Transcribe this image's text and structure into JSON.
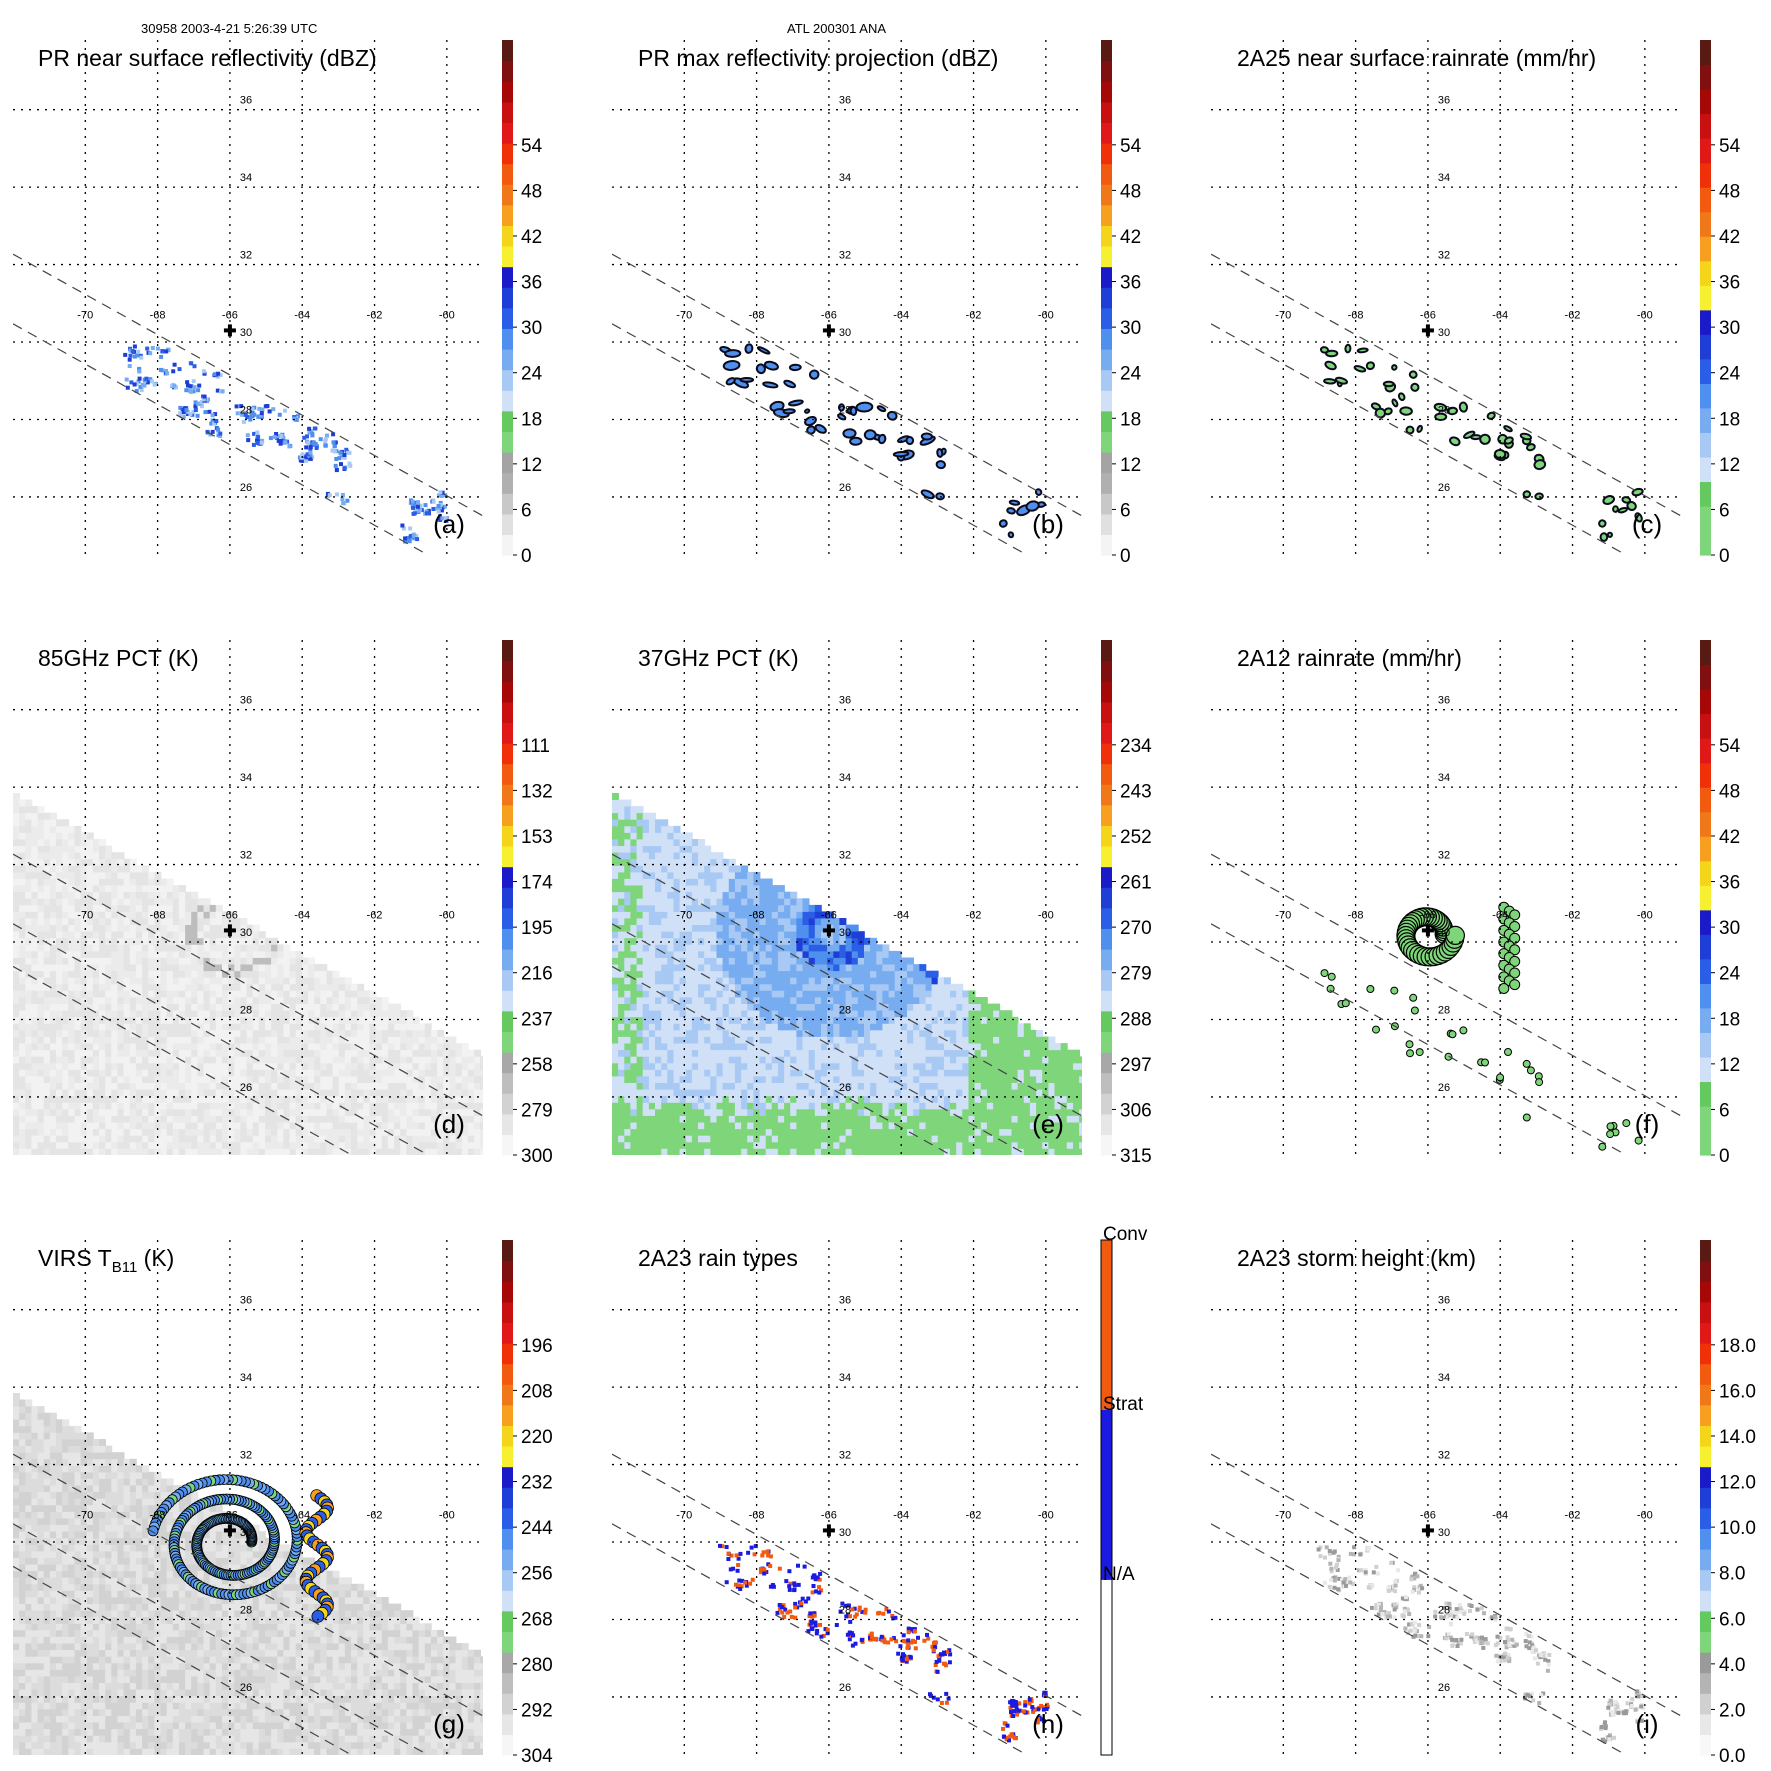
{
  "header": {
    "left": "30958 2003-4-21 5:26:39 UTC",
    "center": "ATL 200301 ANA"
  },
  "colors": {
    "dbz": [
      "#f4f4f4",
      "#e0e0e0",
      "#c8c8c8",
      "#b0b0b0",
      "#a4a4a4",
      "#7fd67a",
      "#64c95e",
      "#cfe0f7",
      "#a8c9f4",
      "#78acf0",
      "#4f90ee",
      "#2a5ee6",
      "#1f3ed6",
      "#1a1ac8",
      "#f7f030",
      "#f4d51a",
      "#f7a020",
      "#f07818",
      "#f25a10",
      "#f03008",
      "#e01818",
      "#c81010",
      "#a60808",
      "#801010",
      "#5a1a14"
    ],
    "tb": [
      "#f6f6f6",
      "#e6e6e6",
      "#d2d2d2",
      "#bebebe",
      "#a8a8a8",
      "#7fd67a",
      "#64c95e",
      "#cfe0f7",
      "#a8c9f4",
      "#78acf0",
      "#4f90ee",
      "#2a5ee6",
      "#1f3ed6",
      "#1a1ac8",
      "#f7f030",
      "#f4d51a",
      "#f7a020",
      "#f07818",
      "#f25a10",
      "#f03008",
      "#e01818",
      "#c81010",
      "#a60808",
      "#801010",
      "#5a1a14"
    ],
    "rain": [
      "#7fd67a",
      "#7fd67a",
      "#64c95e",
      "#cfe0f7",
      "#a8c9f4",
      "#78acf0",
      "#4f90ee",
      "#2a5ee6",
      "#1f3ed6",
      "#1a1ac8",
      "#f7f030",
      "#f4d51a",
      "#f7a020",
      "#f07818",
      "#f25a10",
      "#f03008",
      "#e01818",
      "#c81010",
      "#a60808",
      "#801010",
      "#5a1a14"
    ],
    "height": [
      "#f8f8f8",
      "#e8e8e8",
      "#d0d0d0",
      "#b4b4b4",
      "#9a9a9a",
      "#7fd67a",
      "#64c95e",
      "#cfe0f7",
      "#a8c9f4",
      "#78acf0",
      "#4f90ee",
      "#2a5ee6",
      "#1f3ed6",
      "#1a1ac8",
      "#f7f030",
      "#f4d51a",
      "#f7a020",
      "#f07818",
      "#f25a10",
      "#f03008",
      "#e01818",
      "#c81010",
      "#a60808",
      "#801010",
      "#5a1a14"
    ],
    "raintype": [
      "#ffffff",
      "#1a1ae0",
      "#f25a10"
    ]
  },
  "chart_data": [
    {
      "id": "a",
      "type": "heatmap",
      "title": "PR near surface reflectivity (dBZ)",
      "panel_label": "(a)",
      "colorbar": {
        "ticks": [
          0,
          6,
          12,
          18,
          24,
          30,
          36,
          42,
          48,
          54
        ],
        "range": [
          0,
          60
        ],
        "palette": "dbz"
      },
      "lon_ticks": [
        -70,
        -68,
        -66,
        -64,
        -62,
        -60
      ],
      "lat_ticks": [
        26,
        28,
        30,
        32,
        34,
        36
      ],
      "lon_range": [
        -72,
        -59
      ],
      "lat_range": [
        24.5,
        37.8
      ],
      "swath": "pr",
      "field": "pr_sparse"
    },
    {
      "id": "b",
      "type": "heatmap",
      "title": "PR max reflectivity projection (dBZ)",
      "panel_label": "(b)",
      "colorbar": {
        "ticks": [
          0,
          6,
          12,
          18,
          24,
          30,
          36,
          42,
          48,
          54
        ],
        "range": [
          0,
          60
        ],
        "palette": "dbz"
      },
      "lon_ticks": [
        -70,
        -68,
        -66,
        -64,
        -62,
        -60
      ],
      "lat_ticks": [
        26,
        28,
        30,
        32,
        34,
        36
      ],
      "lon_range": [
        -72,
        -59
      ],
      "lat_range": [
        24.5,
        37.8
      ],
      "swath": "pr",
      "field": "pr_contour"
    },
    {
      "id": "c",
      "type": "heatmap",
      "title": "2A25 near surface rainrate (mm/hr)",
      "panel_label": "(c)",
      "colorbar": {
        "ticks": [
          0,
          6,
          12,
          18,
          24,
          30,
          36,
          42,
          48,
          54
        ],
        "range": [
          0,
          60
        ],
        "palette": "rain"
      },
      "lon_ticks": [
        -70,
        -68,
        -66,
        -64,
        -62,
        -60
      ],
      "lat_ticks": [
        26,
        28,
        30,
        32,
        34,
        36
      ],
      "lon_range": [
        -72,
        -59
      ],
      "lat_range": [
        24.5,
        37.8
      ],
      "swath": "pr",
      "field": "pr_contour_small"
    },
    {
      "id": "d",
      "type": "heatmap",
      "title": "85GHz PCT (K)",
      "panel_label": "(d)",
      "colorbar": {
        "ticks": [
          300,
          279,
          258,
          237,
          216,
          195,
          174,
          153,
          132,
          111
        ],
        "range": [
          300,
          90
        ],
        "palette": "tb"
      },
      "lon_ticks": [
        -70,
        -68,
        -66,
        -64,
        -62,
        -60
      ],
      "lat_ticks": [
        26,
        28,
        30,
        32,
        34,
        36
      ],
      "lon_range": [
        -72,
        -59
      ],
      "lat_range": [
        24.5,
        37.8
      ],
      "swath": "tmi",
      "field": "pct85"
    },
    {
      "id": "e",
      "type": "heatmap",
      "title": "37GHz PCT (K)",
      "panel_label": "(e)",
      "colorbar": {
        "ticks": [
          315,
          306,
          297,
          288,
          279,
          270,
          261,
          252,
          243,
          234
        ],
        "range": [
          315,
          225
        ],
        "palette": "tb"
      },
      "lon_ticks": [
        -70,
        -68,
        -66,
        -64,
        -62,
        -60
      ],
      "lat_ticks": [
        26,
        28,
        30,
        32,
        34,
        36
      ],
      "lon_range": [
        -72,
        -59
      ],
      "lat_range": [
        24.5,
        37.8
      ],
      "swath": "tmi",
      "field": "pct37"
    },
    {
      "id": "f",
      "type": "heatmap",
      "title": "2A12 rainrate (mm/hr)",
      "panel_label": "(f)",
      "colorbar": {
        "ticks": [
          0,
          6,
          12,
          18,
          24,
          30,
          36,
          42,
          48,
          54
        ],
        "range": [
          0,
          60
        ],
        "palette": "rain"
      },
      "lon_ticks": [
        -70,
        -68,
        -66,
        -64,
        -62,
        -60
      ],
      "lat_ticks": [
        26,
        28,
        30,
        32,
        34,
        36
      ],
      "lon_range": [
        -72,
        -59
      ],
      "lat_range": [
        24.5,
        37.8
      ],
      "swath": "pr",
      "field": "tmi_rain"
    },
    {
      "id": "g",
      "type": "heatmap",
      "title": "VIRS T",
      "title_sub": "B11",
      "title_end": " (K)",
      "panel_label": "(g)",
      "colorbar": {
        "ticks": [
          304,
          292,
          280,
          268,
          256,
          244,
          232,
          220,
          208,
          196
        ],
        "range": [
          304,
          184
        ],
        "palette": "tb"
      },
      "lon_ticks": [
        -70,
        -68,
        -66,
        -64,
        -62,
        -60
      ],
      "lat_ticks": [
        26,
        28,
        30,
        32,
        34,
        36
      ],
      "lon_range": [
        -72,
        -59
      ],
      "lat_range": [
        24.5,
        37.8
      ],
      "swath": "tmi",
      "field": "virs"
    },
    {
      "id": "h",
      "type": "heatmap",
      "title": "2A23 rain types",
      "panel_label": "(h)",
      "colorbar": {
        "categories": [
          "N/A",
          "Strat",
          "Conv"
        ],
        "palette": "raintype"
      },
      "lon_ticks": [
        -70,
        -68,
        -66,
        -64,
        -62,
        -60
      ],
      "lat_ticks": [
        26,
        28,
        30,
        32,
        34,
        36
      ],
      "lon_range": [
        -72,
        -59
      ],
      "lat_range": [
        24.5,
        37.8
      ],
      "swath": "pr",
      "field": "raintype"
    },
    {
      "id": "i",
      "type": "heatmap",
      "title": "2A23 storm height (km)",
      "panel_label": "(i)",
      "colorbar": {
        "ticks": [
          "0.0",
          "2.0",
          "4.0",
          "6.0",
          "8.0",
          "10.0",
          "12.0",
          "14.0",
          "16.0",
          "18.0"
        ],
        "range": [
          0,
          20
        ],
        "palette": "height"
      },
      "lon_ticks": [
        -70,
        -68,
        -66,
        -64,
        -62,
        -60
      ],
      "lat_ticks": [
        26,
        28,
        30,
        32,
        34,
        36
      ],
      "lon_range": [
        -72,
        -59
      ],
      "lat_range": [
        24.5,
        37.8
      ],
      "swath": "pr",
      "field": "height"
    }
  ],
  "storm_center": {
    "lon": -66,
    "lat": 30.3
  }
}
